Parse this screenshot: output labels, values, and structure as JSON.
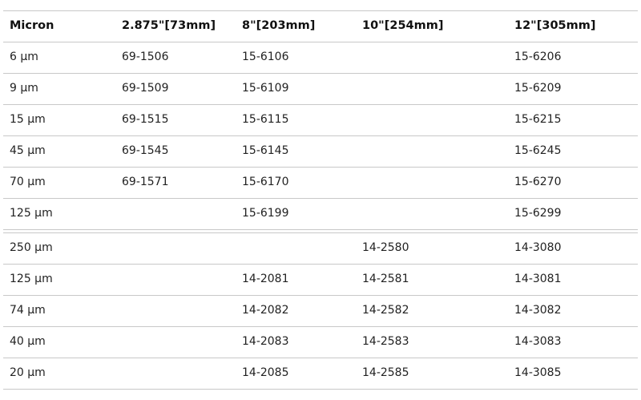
{
  "table": {
    "headers": [
      "Micron",
      "2.875\"[73mm]",
      "8\"[203mm]",
      "10\"[254mm]",
      "12\"[305mm]"
    ],
    "group1": [
      [
        "6 µm",
        "69-1506",
        "15-6106",
        "",
        "15-6206"
      ],
      [
        "9 µm",
        "69-1509",
        "15-6109",
        "",
        "15-6209"
      ],
      [
        "15 µm",
        "69-1515",
        "15-6115",
        "",
        "15-6215"
      ],
      [
        "45 µm",
        "69-1545",
        "15-6145",
        "",
        "15-6245"
      ],
      [
        "70 µm",
        "69-1571",
        "15-6170",
        "",
        "15-6270"
      ],
      [
        "125 µm",
        "",
        "15-6199",
        "",
        "15-6299"
      ]
    ],
    "group2": [
      [
        "250 µm",
        "",
        "",
        "14-2580",
        "14-3080"
      ],
      [
        "125 µm",
        "",
        "14-2081",
        "14-2581",
        "14-3081"
      ],
      [
        "74 µm",
        "",
        "14-2082",
        "14-2582",
        "14-3082"
      ],
      [
        "40 µm",
        "",
        "14-2083",
        "14-2583",
        "14-3083"
      ],
      [
        "20 µm",
        "",
        "14-2085",
        "14-2585",
        "14-3085"
      ]
    ]
  }
}
